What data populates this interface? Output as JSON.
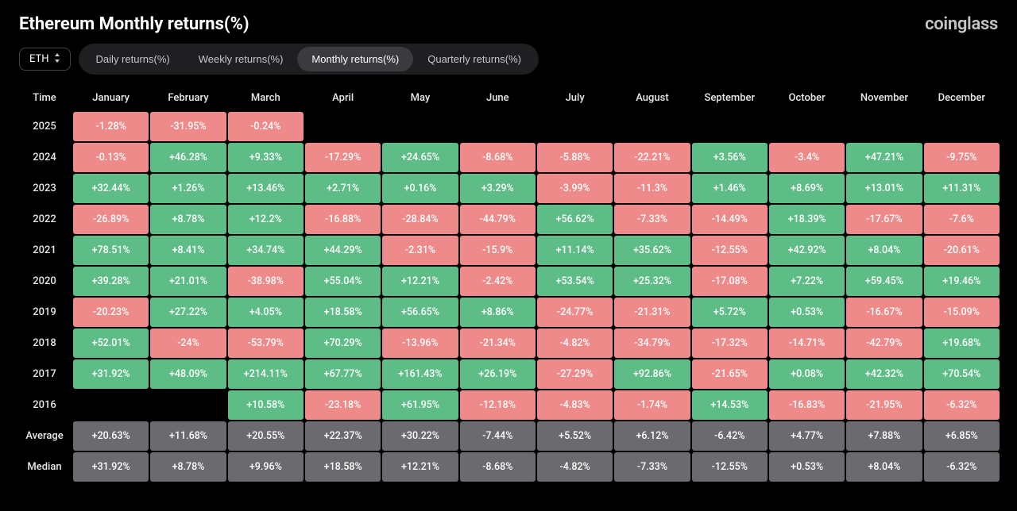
{
  "title": "Ethereum Monthly returns(%)",
  "brand": "coinglass",
  "asset_selector": {
    "value": "ETH"
  },
  "tabs": [
    {
      "label": "Daily returns(%)",
      "active": false
    },
    {
      "label": "Weekly returns(%)",
      "active": false
    },
    {
      "label": "Monthly returns(%)",
      "active": true
    },
    {
      "label": "Quarterly returns(%)",
      "active": false
    }
  ],
  "colors": {
    "background": "#000000",
    "text": "#ffffff",
    "positive_cell_bg": "#5ebd87",
    "negative_cell_bg": "#ef8a8a",
    "summary_cell_bg": "#6b6b6f",
    "cell_text": "#ffffff"
  },
  "table": {
    "time_label": "Time",
    "columns": [
      "January",
      "February",
      "March",
      "April",
      "May",
      "June",
      "July",
      "August",
      "September",
      "October",
      "November",
      "December"
    ],
    "rows": [
      {
        "year": "2025",
        "cells": [
          {
            "v": "-1.28%",
            "t": "neg"
          },
          {
            "v": "-31.95%",
            "t": "neg"
          },
          {
            "v": "-0.24%",
            "t": "neg"
          },
          null,
          null,
          null,
          null,
          null,
          null,
          null,
          null,
          null
        ]
      },
      {
        "year": "2024",
        "cells": [
          {
            "v": "-0.13%",
            "t": "neg"
          },
          {
            "v": "+46.28%",
            "t": "pos"
          },
          {
            "v": "+9.33%",
            "t": "pos"
          },
          {
            "v": "-17.29%",
            "t": "neg"
          },
          {
            "v": "+24.65%",
            "t": "pos"
          },
          {
            "v": "-8.68%",
            "t": "neg"
          },
          {
            "v": "-5.88%",
            "t": "neg"
          },
          {
            "v": "-22.21%",
            "t": "neg"
          },
          {
            "v": "+3.56%",
            "t": "pos"
          },
          {
            "v": "-3.4%",
            "t": "neg"
          },
          {
            "v": "+47.21%",
            "t": "pos"
          },
          {
            "v": "-9.75%",
            "t": "neg"
          }
        ]
      },
      {
        "year": "2023",
        "cells": [
          {
            "v": "+32.44%",
            "t": "pos"
          },
          {
            "v": "+1.26%",
            "t": "pos"
          },
          {
            "v": "+13.46%",
            "t": "pos"
          },
          {
            "v": "+2.71%",
            "t": "pos"
          },
          {
            "v": "+0.16%",
            "t": "pos"
          },
          {
            "v": "+3.29%",
            "t": "pos"
          },
          {
            "v": "-3.99%",
            "t": "neg"
          },
          {
            "v": "-11.3%",
            "t": "neg"
          },
          {
            "v": "+1.46%",
            "t": "pos"
          },
          {
            "v": "+8.69%",
            "t": "pos"
          },
          {
            "v": "+13.01%",
            "t": "pos"
          },
          {
            "v": "+11.31%",
            "t": "pos"
          }
        ]
      },
      {
        "year": "2022",
        "cells": [
          {
            "v": "-26.89%",
            "t": "neg"
          },
          {
            "v": "+8.78%",
            "t": "pos"
          },
          {
            "v": "+12.2%",
            "t": "pos"
          },
          {
            "v": "-16.88%",
            "t": "neg"
          },
          {
            "v": "-28.84%",
            "t": "neg"
          },
          {
            "v": "-44.79%",
            "t": "neg"
          },
          {
            "v": "+56.62%",
            "t": "pos"
          },
          {
            "v": "-7.33%",
            "t": "neg"
          },
          {
            "v": "-14.49%",
            "t": "neg"
          },
          {
            "v": "+18.39%",
            "t": "pos"
          },
          {
            "v": "-17.67%",
            "t": "neg"
          },
          {
            "v": "-7.6%",
            "t": "neg"
          }
        ]
      },
      {
        "year": "2021",
        "cells": [
          {
            "v": "+78.51%",
            "t": "pos"
          },
          {
            "v": "+8.41%",
            "t": "pos"
          },
          {
            "v": "+34.74%",
            "t": "pos"
          },
          {
            "v": "+44.29%",
            "t": "pos"
          },
          {
            "v": "-2.31%",
            "t": "neg"
          },
          {
            "v": "-15.9%",
            "t": "neg"
          },
          {
            "v": "+11.14%",
            "t": "pos"
          },
          {
            "v": "+35.62%",
            "t": "pos"
          },
          {
            "v": "-12.55%",
            "t": "neg"
          },
          {
            "v": "+42.92%",
            "t": "pos"
          },
          {
            "v": "+8.04%",
            "t": "pos"
          },
          {
            "v": "-20.61%",
            "t": "neg"
          }
        ]
      },
      {
        "year": "2020",
        "cells": [
          {
            "v": "+39.28%",
            "t": "pos"
          },
          {
            "v": "+21.01%",
            "t": "pos"
          },
          {
            "v": "-38.98%",
            "t": "neg"
          },
          {
            "v": "+55.04%",
            "t": "pos"
          },
          {
            "v": "+12.21%",
            "t": "pos"
          },
          {
            "v": "-2.42%",
            "t": "neg"
          },
          {
            "v": "+53.54%",
            "t": "pos"
          },
          {
            "v": "+25.32%",
            "t": "pos"
          },
          {
            "v": "-17.08%",
            "t": "neg"
          },
          {
            "v": "+7.22%",
            "t": "pos"
          },
          {
            "v": "+59.45%",
            "t": "pos"
          },
          {
            "v": "+19.46%",
            "t": "pos"
          }
        ]
      },
      {
        "year": "2019",
        "cells": [
          {
            "v": "-20.23%",
            "t": "neg"
          },
          {
            "v": "+27.22%",
            "t": "pos"
          },
          {
            "v": "+4.05%",
            "t": "pos"
          },
          {
            "v": "+18.58%",
            "t": "pos"
          },
          {
            "v": "+56.65%",
            "t": "pos"
          },
          {
            "v": "+8.86%",
            "t": "pos"
          },
          {
            "v": "-24.77%",
            "t": "neg"
          },
          {
            "v": "-21.31%",
            "t": "neg"
          },
          {
            "v": "+5.72%",
            "t": "pos"
          },
          {
            "v": "+0.53%",
            "t": "pos"
          },
          {
            "v": "-16.67%",
            "t": "neg"
          },
          {
            "v": "-15.09%",
            "t": "neg"
          }
        ]
      },
      {
        "year": "2018",
        "cells": [
          {
            "v": "+52.01%",
            "t": "pos"
          },
          {
            "v": "-24%",
            "t": "neg"
          },
          {
            "v": "-53.79%",
            "t": "neg"
          },
          {
            "v": "+70.29%",
            "t": "pos"
          },
          {
            "v": "-13.96%",
            "t": "neg"
          },
          {
            "v": "-21.34%",
            "t": "neg"
          },
          {
            "v": "-4.82%",
            "t": "neg"
          },
          {
            "v": "-34.79%",
            "t": "neg"
          },
          {
            "v": "-17.32%",
            "t": "neg"
          },
          {
            "v": "-14.71%",
            "t": "neg"
          },
          {
            "v": "-42.79%",
            "t": "neg"
          },
          {
            "v": "+19.68%",
            "t": "pos"
          }
        ]
      },
      {
        "year": "2017",
        "cells": [
          {
            "v": "+31.92%",
            "t": "pos"
          },
          {
            "v": "+48.09%",
            "t": "pos"
          },
          {
            "v": "+214.11%",
            "t": "pos"
          },
          {
            "v": "+67.77%",
            "t": "pos"
          },
          {
            "v": "+161.43%",
            "t": "pos"
          },
          {
            "v": "+26.19%",
            "t": "pos"
          },
          {
            "v": "-27.29%",
            "t": "neg"
          },
          {
            "v": "+92.86%",
            "t": "pos"
          },
          {
            "v": "-21.65%",
            "t": "neg"
          },
          {
            "v": "+0.08%",
            "t": "pos"
          },
          {
            "v": "+42.32%",
            "t": "pos"
          },
          {
            "v": "+70.54%",
            "t": "pos"
          }
        ]
      },
      {
        "year": "2016",
        "cells": [
          null,
          null,
          {
            "v": "+10.58%",
            "t": "pos"
          },
          {
            "v": "-23.18%",
            "t": "neg"
          },
          {
            "v": "+61.95%",
            "t": "pos"
          },
          {
            "v": "-12.18%",
            "t": "neg"
          },
          {
            "v": "-4.83%",
            "t": "neg"
          },
          {
            "v": "-1.74%",
            "t": "neg"
          },
          {
            "v": "+14.53%",
            "t": "pos"
          },
          {
            "v": "-16.83%",
            "t": "neg"
          },
          {
            "v": "-21.95%",
            "t": "neg"
          },
          {
            "v": "-6.32%",
            "t": "neg"
          }
        ]
      }
    ],
    "summary": [
      {
        "label": "Average",
        "cells": [
          "+20.63%",
          "+11.68%",
          "+20.55%",
          "+22.37%",
          "+30.22%",
          "-7.44%",
          "+5.52%",
          "+6.12%",
          "-6.42%",
          "+4.77%",
          "+7.88%",
          "+6.85%"
        ]
      },
      {
        "label": "Median",
        "cells": [
          "+31.92%",
          "+8.78%",
          "+9.96%",
          "+18.58%",
          "+12.21%",
          "-8.68%",
          "-4.82%",
          "-7.33%",
          "-12.55%",
          "+0.53%",
          "+8.04%",
          "-6.32%"
        ]
      }
    ]
  }
}
